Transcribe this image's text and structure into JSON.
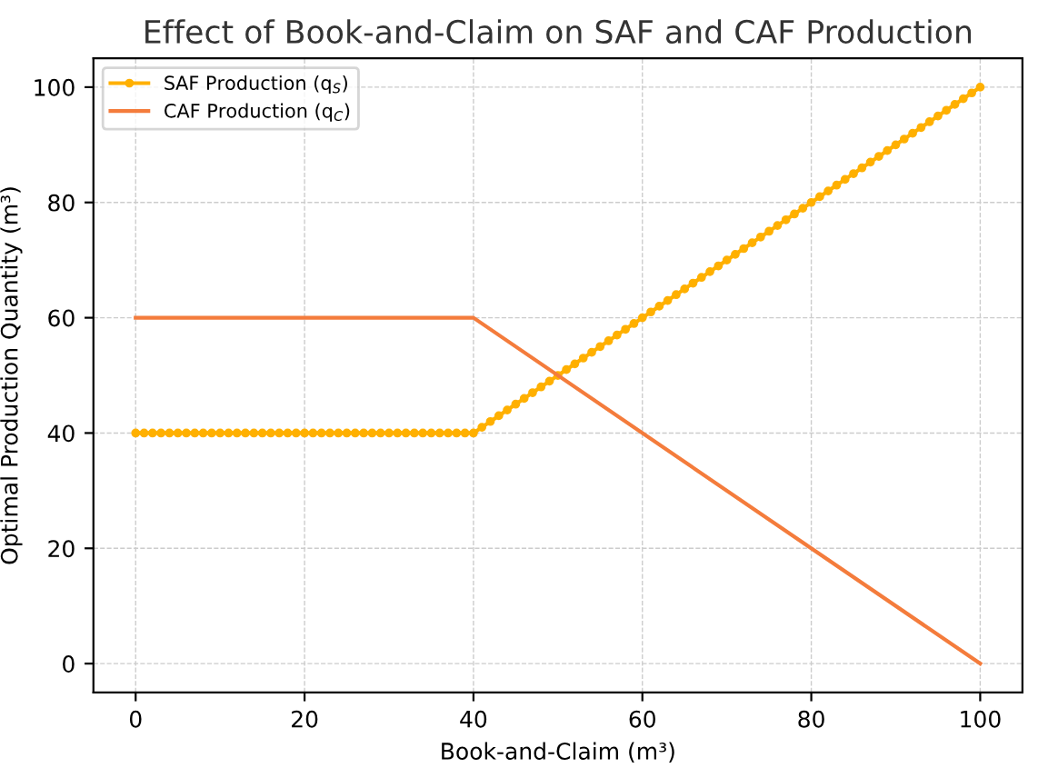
{
  "chart_data": {
    "type": "line",
    "title": "Effect of Book-and-Claim on SAF and CAF Production",
    "xlabel": "Book-and-Claim (m³)",
    "ylabel": "Optimal Production Quantity (m³)",
    "xlim": [
      -5,
      105
    ],
    "ylim": [
      -5,
      105
    ],
    "xticks": [
      0,
      20,
      40,
      60,
      80,
      100
    ],
    "yticks": [
      0,
      20,
      40,
      60,
      80,
      100
    ],
    "grid": true,
    "legend": "top left",
    "series": [
      {
        "name": "SAF Production (q$_{S}$)",
        "color": "#ffb000",
        "marker": "circle",
        "x": [
          0,
          1,
          2,
          3,
          4,
          5,
          6,
          7,
          8,
          9,
          10,
          11,
          12,
          13,
          14,
          15,
          16,
          17,
          18,
          19,
          20,
          21,
          22,
          23,
          24,
          25,
          26,
          27,
          28,
          29,
          30,
          31,
          32,
          33,
          34,
          35,
          36,
          37,
          38,
          39,
          40,
          41,
          42,
          43,
          44,
          45,
          46,
          47,
          48,
          49,
          50,
          51,
          52,
          53,
          54,
          55,
          56,
          57,
          58,
          59,
          60,
          61,
          62,
          63,
          64,
          65,
          66,
          67,
          68,
          69,
          70,
          71,
          72,
          73,
          74,
          75,
          76,
          77,
          78,
          79,
          80,
          81,
          82,
          83,
          84,
          85,
          86,
          87,
          88,
          89,
          90,
          91,
          92,
          93,
          94,
          95,
          96,
          97,
          98,
          99,
          100
        ],
        "values": [
          40,
          40,
          40,
          40,
          40,
          40,
          40,
          40,
          40,
          40,
          40,
          40,
          40,
          40,
          40,
          40,
          40,
          40,
          40,
          40,
          40,
          40,
          40,
          40,
          40,
          40,
          40,
          40,
          40,
          40,
          40,
          40,
          40,
          40,
          40,
          40,
          40,
          40,
          40,
          40,
          40,
          41,
          42,
          43,
          44,
          45,
          46,
          47,
          48,
          49,
          50,
          51,
          52,
          53,
          54,
          55,
          56,
          57,
          58,
          59,
          60,
          61,
          62,
          63,
          64,
          65,
          66,
          67,
          68,
          69,
          70,
          71,
          72,
          73,
          74,
          75,
          76,
          77,
          78,
          79,
          80,
          81,
          82,
          83,
          84,
          85,
          86,
          87,
          88,
          89,
          90,
          91,
          92,
          93,
          94,
          95,
          96,
          97,
          98,
          99,
          100
        ]
      },
      {
        "name": "CAF Production (q$_{C}$)",
        "color": "#f47c3c",
        "marker": "none",
        "x": [
          0,
          40,
          100
        ],
        "values": [
          60,
          60,
          0
        ]
      }
    ]
  }
}
